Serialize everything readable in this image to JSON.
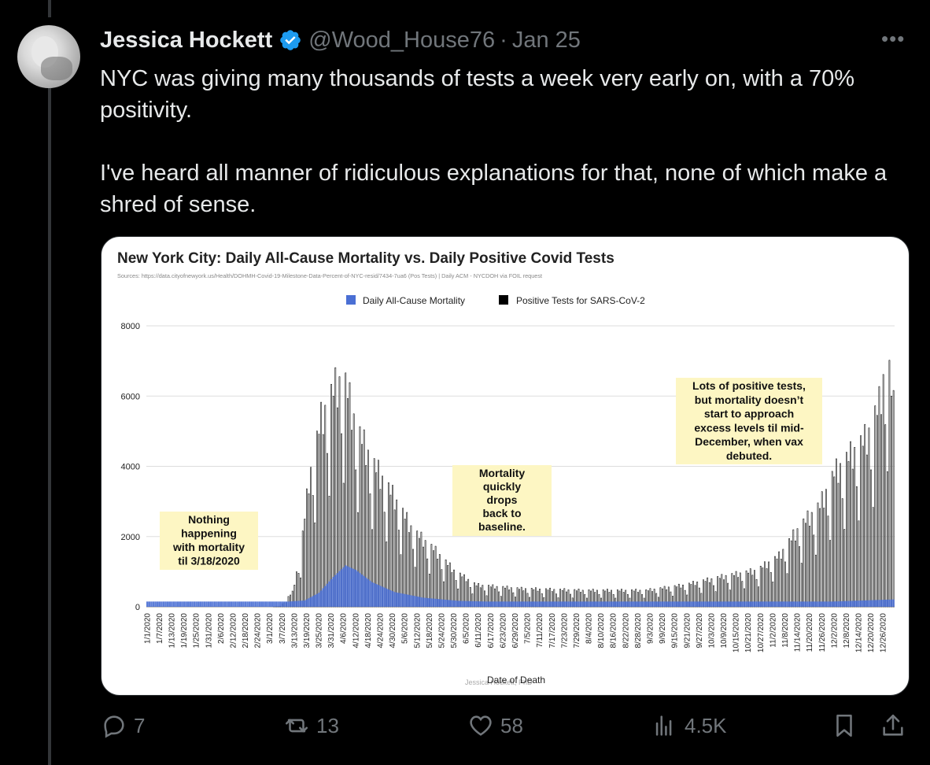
{
  "tweet": {
    "author_name": "Jessica Hockett",
    "handle": "@Wood_House76",
    "separator": "·",
    "date": "Jan 25",
    "paragraphs": [
      "NYC was giving many thousands of tests a week very early on, with a 70% positivity.",
      "I've heard all manner of ridiculous explanations for that, none of which make a shred of sense."
    ],
    "colors": {
      "background": "#000000",
      "text": "#e7e9ea",
      "muted": "#71767b",
      "verified": "#1d9bf0"
    }
  },
  "actions": {
    "replies": "7",
    "retweets": "13",
    "likes": "58",
    "views": "4.5K"
  },
  "chart_data": {
    "type": "bar",
    "title": "New York City: Daily All-Cause Mortality vs. Daily Positive Covid Tests",
    "subtitle": "Sources: https://data.cityofnewyork.us/Health/DOHMH-Covid-19-Milestone-Data-Percent-of-NYC-resid/7434-7ua6 (Pos Tests) | Daily ACM - NYCDOH via FOIL request",
    "xlabel": "Date of Death",
    "watermark": "Jessica Hockett, PhD",
    "ylim": [
      0,
      8000
    ],
    "y_ticks": [
      "0",
      "2000",
      "4000",
      "6000",
      "8000"
    ],
    "legend_position": "top-center",
    "grid": true,
    "series": [
      {
        "name": "Daily All-Cause Mortality",
        "color": "#4a6fd4"
      },
      {
        "name": "Positive Tests for SARS-CoV-2",
        "color": "#000000"
      }
    ],
    "x_tick_labels": [
      "1/1/2020",
      "1/7/2020",
      "1/13/2020",
      "1/19/2020",
      "1/25/2020",
      "1/31/2020",
      "2/6/2020",
      "2/12/2020",
      "2/18/2020",
      "2/24/2020",
      "3/1/2020",
      "3/7/2020",
      "3/13/2020",
      "3/19/2020",
      "3/25/2020",
      "3/31/2020",
      "4/6/2020",
      "4/12/2020",
      "4/18/2020",
      "4/24/2020",
      "4/30/2020",
      "5/6/2020",
      "5/12/2020",
      "5/18/2020",
      "5/24/2020",
      "5/30/2020",
      "6/5/2020",
      "6/11/2020",
      "6/17/2020",
      "6/23/2020",
      "6/29/2020",
      "7/5/2020",
      "7/11/2020",
      "7/17/2020",
      "7/23/2020",
      "7/29/2020",
      "8/4/2020",
      "8/10/2020",
      "8/16/2020",
      "8/22/2020",
      "8/28/2020",
      "9/3/2020",
      "9/9/2020",
      "9/15/2020",
      "9/21/2020",
      "9/27/2020",
      "10/3/2020",
      "10/9/2020",
      "10/15/2020",
      "10/21/2020",
      "10/27/2020",
      "11/2/2020",
      "11/8/2020",
      "11/14/2020",
      "11/20/2020",
      "11/26/2020",
      "12/2/2020",
      "12/8/2020",
      "12/14/2020",
      "12/20/2020",
      "12/26/2020"
    ],
    "mortality_anchors": [
      [
        "1/1/2020",
        150
      ],
      [
        "3/10/2020",
        150
      ],
      [
        "3/18/2020",
        180
      ],
      [
        "3/25/2020",
        400
      ],
      [
        "4/1/2020",
        850
      ],
      [
        "4/7/2020",
        1180
      ],
      [
        "4/12/2020",
        1050
      ],
      [
        "4/20/2020",
        700
      ],
      [
        "5/1/2020",
        420
      ],
      [
        "5/15/2020",
        260
      ],
      [
        "6/1/2020",
        170
      ],
      [
        "6/15/2020",
        150
      ],
      [
        "12/1/2020",
        150
      ],
      [
        "12/31/2020",
        210
      ]
    ],
    "positive_tests_anchors": [
      [
        "1/1/2020",
        0
      ],
      [
        "3/2/2020",
        0
      ],
      [
        "3/6/2020",
        20
      ],
      [
        "3/12/2020",
        400
      ],
      [
        "3/16/2020",
        1500
      ],
      [
        "3/20/2020",
        3500
      ],
      [
        "3/26/2020",
        5200
      ],
      [
        "4/1/2020",
        6000
      ],
      [
        "4/6/2020",
        6400
      ],
      [
        "4/12/2020",
        5000
      ],
      [
        "4/20/2020",
        4000
      ],
      [
        "5/1/2020",
        3000
      ],
      [
        "5/10/2020",
        2100
      ],
      [
        "5/20/2020",
        1600
      ],
      [
        "5/30/2020",
        1000
      ],
      [
        "6/10/2020",
        600
      ],
      [
        "7/1/2020",
        500
      ],
      [
        "8/1/2020",
        450
      ],
      [
        "9/1/2020",
        450
      ],
      [
        "9/20/2020",
        600
      ],
      [
        "10/10/2020",
        850
      ],
      [
        "10/25/2020",
        1000
      ],
      [
        "11/5/2020",
        1400
      ],
      [
        "11/15/2020",
        2200
      ],
      [
        "11/25/2020",
        2800
      ],
      [
        "12/2/2020",
        3700
      ],
      [
        "12/10/2020",
        4200
      ],
      [
        "12/18/2020",
        4700
      ],
      [
        "12/24/2020",
        5600
      ],
      [
        "12/28/2020",
        7000
      ],
      [
        "12/31/2020",
        5500
      ]
    ],
    "annotations": [
      {
        "text": "Nothing happening with mortality til 3/18/2020",
        "lines": [
          "Nothing",
          "happening",
          "with mortality",
          "til 3/18/2020"
        ]
      },
      {
        "text": "Mortality quickly drops back to baseline.",
        "lines": [
          "Mortality",
          "quickly",
          "drops",
          "back to",
          "baseline."
        ]
      },
      {
        "text": "Lots of positive tests, but mortality doesn't start to approach excess levels til mid-December, when vax debuted.",
        "lines": [
          "Lots of positive tests,",
          "but mortality doesn’t",
          "start to approach",
          "excess levels til mid-",
          "December, when vax",
          "debuted."
        ]
      }
    ]
  }
}
